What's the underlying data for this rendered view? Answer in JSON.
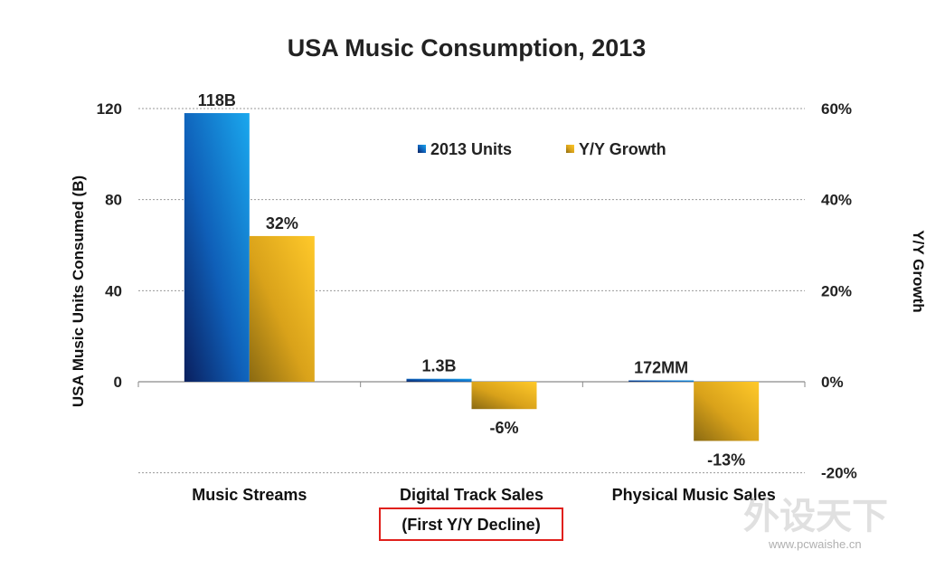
{
  "chart_data": {
    "type": "bar",
    "title": "USA Music Consumption, 2013",
    "ylabel": "USA Music Units Consumed (B)",
    "y2label": "Y/Y Growth",
    "categories": [
      "Music Streams",
      "Digital Track Sales",
      "Physical Music Sales"
    ],
    "category_note": "(First Y/Y Decline)",
    "ylim": [
      -40,
      120
    ],
    "y_ticks": [
      "120",
      "80",
      "40",
      "0"
    ],
    "y2lim": [
      -20,
      60
    ],
    "y2_ticks": [
      "60%",
      "40%",
      "20%",
      "0%",
      "-20%"
    ],
    "series": [
      {
        "name": "2013 Units",
        "axis": "left",
        "values": [
          118,
          1.3,
          0.172
        ],
        "labels": [
          "118B",
          "1.3B",
          "172MM"
        ],
        "color": "#1a7bd6"
      },
      {
        "name": "Y/Y Growth",
        "axis": "right",
        "values": [
          32,
          -6,
          -13
        ],
        "labels": [
          "32%",
          "-6%",
          "-13%"
        ],
        "color": "#e3a316"
      }
    ],
    "grid": true,
    "legend_position": "top-center",
    "highlight_color": "#e0201c"
  },
  "watermark": {
    "text": "外设天下",
    "url": "www.pcwaishe.cn"
  }
}
